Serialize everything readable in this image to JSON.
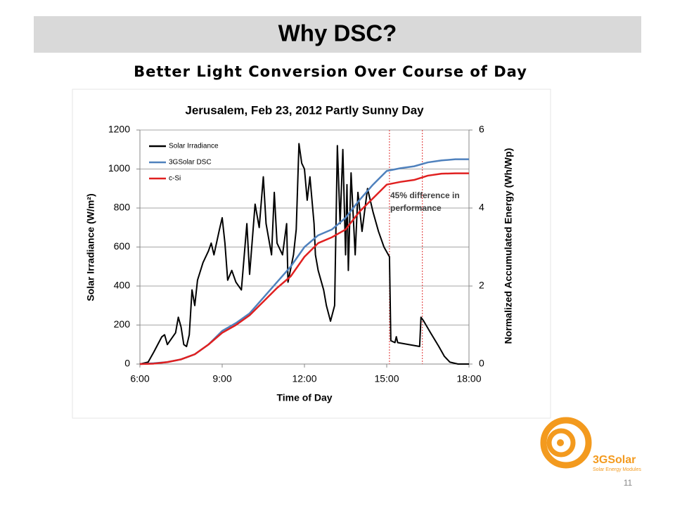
{
  "slide": {
    "title": "Why DSC?",
    "subtitle": "Better Light Conversion Over Course of Day",
    "page_number": "11",
    "logo": {
      "name": "3GSolar",
      "tagline": "Solar Energy Modules"
    }
  },
  "chart_data": {
    "type": "line",
    "title": "Jerusalem, Feb 23, 2012 Partly Sunny Day",
    "x_label": "Time of Day",
    "y_label": "Solar Irradiance (W/m²)",
    "y2_label": "Normalized Accumulated Energy (Wh/Wp)",
    "xlim": [
      6,
      18
    ],
    "xticks": [
      {
        "value": 6,
        "label": "6:00"
      },
      {
        "value": 9,
        "label": "9:00"
      },
      {
        "value": 12,
        "label": "12:00"
      },
      {
        "value": 15,
        "label": "15:00"
      },
      {
        "value": 18,
        "label": "18:00"
      }
    ],
    "ylim": [
      0,
      1200
    ],
    "yticks": [
      0,
      200,
      400,
      600,
      800,
      1000,
      1200
    ],
    "y2lim": [
      0,
      6
    ],
    "y2ticks": [
      0,
      2,
      4,
      6
    ],
    "grid": true,
    "legend": "upper left",
    "annotation": [
      "45% difference in",
      "performance"
    ],
    "vlines": [
      15.1,
      16.3
    ],
    "vline_color": "#e03030",
    "series": [
      {
        "name": "Solar Irradiance",
        "color": "#000000",
        "x": [
          6,
          6.3,
          6.5,
          6.8,
          6.9,
          7.0,
          7.1,
          7.3,
          7.4,
          7.5,
          7.6,
          7.7,
          7.8,
          7.9,
          8.0,
          8.1,
          8.3,
          8.5,
          8.6,
          8.7,
          8.9,
          9.0,
          9.1,
          9.2,
          9.35,
          9.5,
          9.7,
          9.9,
          10.0,
          10.2,
          10.35,
          10.5,
          10.6,
          10.8,
          10.9,
          11.0,
          11.2,
          11.35,
          11.4,
          11.6,
          11.7,
          11.8,
          11.9,
          12.0,
          12.1,
          12.2,
          12.35,
          12.4,
          12.5,
          12.7,
          12.8,
          12.95,
          13.1,
          13.2,
          13.3,
          13.4,
          13.5,
          13.55,
          13.6,
          13.7,
          13.85,
          13.95,
          14.1,
          14.3,
          14.5,
          14.7,
          14.9,
          15.1,
          15.15,
          15.3,
          15.35,
          15.4,
          15.8,
          16.2,
          16.25,
          16.35,
          16.6,
          16.9,
          17.1,
          17.3,
          17.6,
          18.0
        ],
        "values": [
          0,
          10,
          60,
          140,
          150,
          100,
          120,
          160,
          240,
          190,
          100,
          90,
          150,
          380,
          300,
          430,
          520,
          580,
          620,
          560,
          690,
          750,
          620,
          430,
          480,
          420,
          380,
          720,
          460,
          820,
          700,
          960,
          720,
          560,
          880,
          620,
          560,
          720,
          420,
          560,
          690,
          1130,
          1030,
          1000,
          840,
          960,
          720,
          560,
          480,
          380,
          300,
          220,
          300,
          1120,
          720,
          1100,
          560,
          920,
          480,
          980,
          560,
          880,
          680,
          900,
          780,
          680,
          600,
          550,
          120,
          110,
          140,
          110,
          100,
          90,
          240,
          220,
          160,
          90,
          40,
          10,
          0,
          0
        ]
      },
      {
        "name": "3GSolar DSC",
        "color": "#4f81bd",
        "axis": "y2",
        "x": [
          6,
          6.5,
          7,
          7.5,
          8,
          8.5,
          9,
          9.5,
          10,
          10.5,
          11,
          11.5,
          12,
          12.5,
          13,
          13.5,
          14,
          14.5,
          15,
          15.5,
          16,
          16.5,
          17,
          17.5,
          18
        ],
        "values": [
          0,
          0.02,
          0.05,
          0.12,
          0.25,
          0.5,
          0.85,
          1.05,
          1.3,
          1.7,
          2.1,
          2.5,
          3.0,
          3.3,
          3.45,
          3.75,
          4.2,
          4.6,
          4.95,
          5.02,
          5.07,
          5.17,
          5.22,
          5.25,
          5.25
        ]
      },
      {
        "name": "c-Si",
        "color": "#e02020",
        "axis": "y2",
        "x": [
          6,
          6.5,
          7,
          7.5,
          8,
          8.5,
          9,
          9.5,
          10,
          10.5,
          11,
          11.5,
          12,
          12.5,
          13,
          13.5,
          14,
          14.5,
          15,
          15.5,
          16,
          16.5,
          17,
          17.5,
          18
        ],
        "values": [
          0,
          0.01,
          0.05,
          0.12,
          0.25,
          0.5,
          0.8,
          1.0,
          1.25,
          1.6,
          1.95,
          2.25,
          2.75,
          3.1,
          3.25,
          3.45,
          3.9,
          4.25,
          4.6,
          4.67,
          4.72,
          4.83,
          4.88,
          4.89,
          4.89
        ]
      }
    ]
  }
}
